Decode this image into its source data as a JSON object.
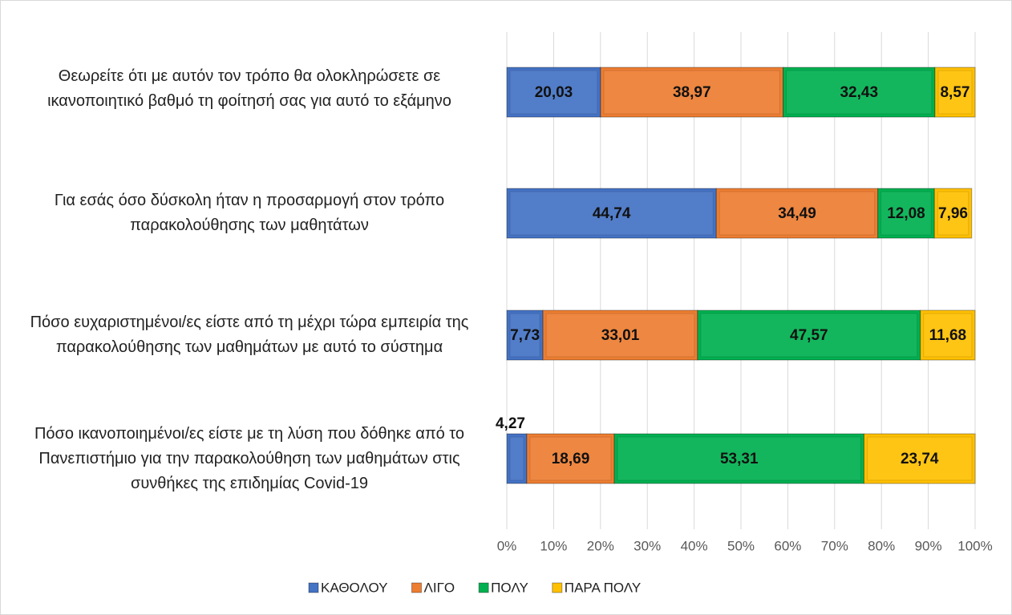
{
  "chart_data": {
    "type": "stacked-barh",
    "categories": [
      "Θεωρείτε ότι με αυτόν τον τρόπο θα ολοκληρώσετε σε ικανοποιητικό βαθμό τη φοίτησή σας για αυτό το εξάμηνο",
      "Για εσάς όσο δύσκολη ήταν η προσαρμογή στον τρόπο παρακολούθησης των μαθητάτων",
      "Πόσο ευχαριστημένοι/ες είστε από τη μέχρι τώρα εμπειρία της παρακολούθησης των μαθημάτων με αυτό το σύστημα",
      "Πόσο ικανοποιημένοι/ες είστε με τη λύση που δόθηκε από το Πανεπιστήμιο για την παρακολούθηση των μαθημάτων στις συνθήκες της επιδημίας Covid-19"
    ],
    "series": [
      {
        "name": "ΚΑΘΟΛΟΥ",
        "color": "#4472c4",
        "values": [
          20.03,
          44.74,
          7.73,
          4.27
        ],
        "value_labels": [
          "20,03",
          "44,74",
          "7,73",
          "4,27"
        ]
      },
      {
        "name": "ΛΙΓΟ",
        "color": "#ed7d31",
        "values": [
          38.97,
          34.49,
          33.01,
          18.69
        ],
        "value_labels": [
          "38,97",
          "34,49",
          "33,01",
          "18,69"
        ]
      },
      {
        "name": "ΠΟΛΥ",
        "color": "#00b050",
        "values": [
          32.43,
          12.08,
          47.57,
          53.31
        ],
        "value_labels": [
          "32,43",
          "12,08",
          "47,57",
          "53,31"
        ]
      },
      {
        "name": "ΠΑΡΑ ΠΟΛΥ",
        "color": "#ffc000",
        "values": [
          8.57,
          7.96,
          11.68,
          23.74
        ],
        "value_labels": [
          "8,57",
          "7,96",
          "11,68",
          "23,74"
        ]
      }
    ],
    "xlim": [
      0,
      100
    ],
    "xticks": [
      {
        "value": 0,
        "label": "0%"
      },
      {
        "value": 10,
        "label": "10%"
      },
      {
        "value": 20,
        "label": "20%"
      },
      {
        "value": 30,
        "label": "30%"
      },
      {
        "value": 40,
        "label": "40%"
      },
      {
        "value": 50,
        "label": "50%"
      },
      {
        "value": 60,
        "label": "60%"
      },
      {
        "value": 70,
        "label": "70%"
      },
      {
        "value": 80,
        "label": "80%"
      },
      {
        "value": 90,
        "label": "90%"
      },
      {
        "value": 100,
        "label": "100%"
      }
    ],
    "grid": true,
    "legend": "bottom"
  }
}
